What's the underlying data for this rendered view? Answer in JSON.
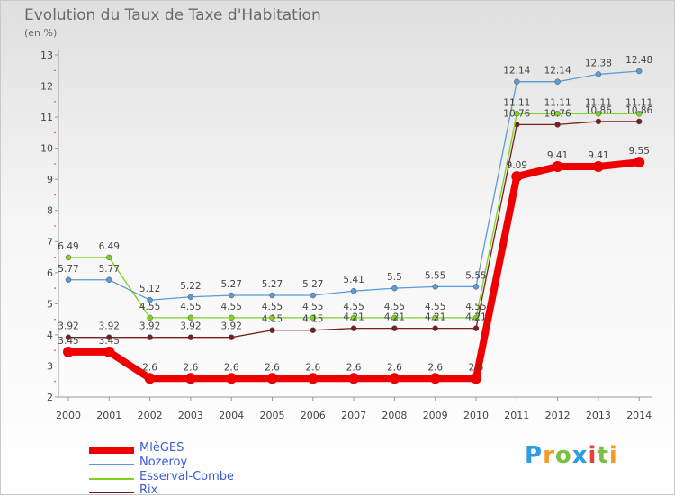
{
  "title": "Evolution du Taux de Taxe d'Habitation",
  "unit_label": "(en %)",
  "logo": "Proxiti",
  "chart_data": {
    "type": "line",
    "title": "Evolution du Taux de Taxe d'Habitation",
    "ylabel": "(en %)",
    "xlabel": "",
    "ylim": [
      2,
      13
    ],
    "yticks": [
      2,
      3,
      4,
      5,
      6,
      7,
      8,
      9,
      10,
      11,
      12,
      13
    ],
    "grid": false,
    "legend_position": "bottom-left",
    "x": [
      "2000",
      "2001",
      "2002",
      "2003",
      "2004",
      "2005",
      "2006",
      "2007",
      "2008",
      "2009",
      "2010",
      "2011",
      "2012",
      "2013",
      "2014"
    ],
    "series": [
      {
        "name": "MlèGES",
        "color": "#ee0000",
        "values": [
          3.45,
          3.45,
          2.6,
          2.6,
          2.6,
          2.6,
          2.6,
          2.6,
          2.6,
          2.6,
          2.6,
          9.09,
          9.41,
          9.41,
          9.55
        ],
        "labels": [
          "3.45",
          "3.45",
          "2.6",
          "2.6",
          "2.6",
          "2.6",
          "2.6",
          "2.6",
          "2.6",
          "2.6",
          "2.6",
          "9.09",
          "9.41",
          "9.41",
          "9.55"
        ]
      },
      {
        "name": "Nozeroy",
        "color": "#5b9bd5",
        "values": [
          5.77,
          5.77,
          5.12,
          5.22,
          5.27,
          5.27,
          5.27,
          5.41,
          5.5,
          5.55,
          5.55,
          12.14,
          12.14,
          12.38,
          12.48
        ],
        "labels": [
          "5.77",
          "5.77",
          "5.12",
          "5.22",
          "5.27",
          "5.27",
          "5.27",
          "5.41",
          "5.5",
          "5.55",
          "5.55",
          "12.14",
          "12.14",
          "12.38",
          "12.48"
        ]
      },
      {
        "name": "Esserval-Combe",
        "color": "#7ed321",
        "values": [
          6.49,
          6.49,
          4.55,
          4.55,
          4.55,
          4.55,
          4.55,
          4.55,
          4.55,
          4.55,
          4.55,
          11.11,
          11.11,
          11.11,
          11.11
        ],
        "labels": [
          "6.49",
          "6.49",
          "4.55",
          "4.55",
          "4.55",
          "4.55",
          "4.55",
          "4.55",
          "4.55",
          "4.55",
          "4.55",
          "11.11",
          "11.11",
          "11.11",
          "11.11"
        ]
      },
      {
        "name": "Rix",
        "color": "#7b1d1d",
        "values": [
          3.92,
          3.92,
          3.92,
          3.92,
          3.92,
          4.15,
          4.15,
          4.21,
          4.21,
          4.21,
          4.21,
          10.76,
          10.76,
          10.86,
          10.86
        ],
        "labels": [
          "3.92",
          "3.92",
          "3.92",
          "3.92",
          "3.92",
          "4.15",
          "4.15",
          "4.21",
          "4.21",
          "4.21",
          "4.21",
          "10.76",
          "10.76",
          "10.86",
          "10.86"
        ]
      }
    ]
  }
}
